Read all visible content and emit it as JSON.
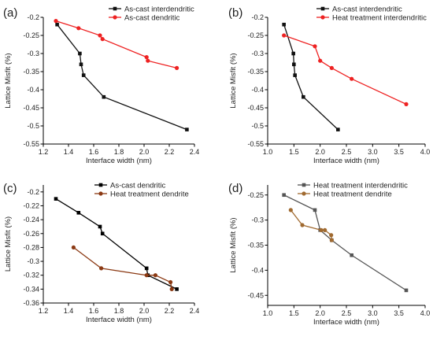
{
  "chart_data": [
    {
      "panel": "(a)",
      "type": "line",
      "xlabel": "Interface width (nm)",
      "ylabel": "Lattice Misfit (%)",
      "xlim": [
        1.2,
        2.4
      ],
      "ylim": [
        -0.55,
        -0.2
      ],
      "xticks": [
        1.2,
        1.4,
        1.6,
        1.8,
        2.0,
        2.2,
        2.4
      ],
      "yticks": [
        -0.55,
        -0.5,
        -0.45,
        -0.4,
        -0.35,
        -0.3,
        -0.25,
        -0.2
      ],
      "legend": "top-center",
      "series": [
        {
          "name": "As-cast interdendritic",
          "color": "#111111",
          "marker": "square",
          "x": [
            1.31,
            1.49,
            1.5,
            1.52,
            1.68,
            2.34
          ],
          "y": [
            -0.22,
            -0.3,
            -0.33,
            -0.36,
            -0.42,
            -0.51
          ]
        },
        {
          "name": "As-cast dendritic",
          "color": "#ee2222",
          "marker": "circle",
          "x": [
            1.3,
            1.48,
            1.65,
            1.67,
            2.02,
            2.03,
            2.26
          ],
          "y": [
            -0.21,
            -0.23,
            -0.25,
            -0.26,
            -0.31,
            -0.32,
            -0.34
          ]
        }
      ]
    },
    {
      "panel": "(b)",
      "type": "line",
      "xlabel": "Interface width (nm)",
      "ylabel": "Lattice Misfit (%)",
      "xlim": [
        1.0,
        4.0
      ],
      "ylim": [
        -0.55,
        -0.2
      ],
      "xticks": [
        1.0,
        1.5,
        2.0,
        2.5,
        3.0,
        3.5,
        4.0
      ],
      "yticks": [
        -0.55,
        -0.5,
        -0.45,
        -0.4,
        -0.35,
        -0.3,
        -0.25,
        -0.2
      ],
      "legend": "top-center",
      "series": [
        {
          "name": "As-cast interdendritic",
          "color": "#111111",
          "marker": "square",
          "x": [
            1.31,
            1.49,
            1.5,
            1.52,
            1.68,
            2.34
          ],
          "y": [
            -0.22,
            -0.3,
            -0.33,
            -0.36,
            -0.42,
            -0.51
          ]
        },
        {
          "name": "Heat treatment interdendritic",
          "color": "#ee2222",
          "marker": "circle",
          "x": [
            1.31,
            1.9,
            2.0,
            2.22,
            2.6,
            3.64
          ],
          "y": [
            -0.25,
            -0.28,
            -0.32,
            -0.34,
            -0.37,
            -0.44
          ]
        }
      ]
    },
    {
      "panel": "(c)",
      "type": "line",
      "xlabel": "Interface width (nm)",
      "ylabel": "Lattice Misfit (%)",
      "xlim": [
        1.2,
        2.4
      ],
      "ylim": [
        -0.36,
        -0.19
      ],
      "xticks": [
        1.2,
        1.4,
        1.6,
        1.8,
        2.0,
        2.2,
        2.4
      ],
      "yticks": [
        -0.36,
        -0.34,
        -0.32,
        -0.3,
        -0.28,
        -0.26,
        -0.24,
        -0.22,
        -0.2
      ],
      "legend": "top-center",
      "series": [
        {
          "name": "As-cast dendritic",
          "color": "#000000",
          "marker": "square",
          "x": [
            1.3,
            1.48,
            1.65,
            1.67,
            2.02,
            2.03,
            2.26
          ],
          "y": [
            -0.21,
            -0.23,
            -0.25,
            -0.26,
            -0.31,
            -0.32,
            -0.34
          ]
        },
        {
          "name": "Heat treatment dendrite",
          "color": "#8b3a14",
          "marker": "circle",
          "x": [
            1.44,
            1.66,
            2.02,
            2.09,
            2.21,
            2.22
          ],
          "y": [
            -0.28,
            -0.31,
            -0.32,
            -0.32,
            -0.33,
            -0.34
          ]
        }
      ]
    },
    {
      "panel": "(d)",
      "type": "line",
      "xlabel": "Interface width (nm)",
      "ylabel": "Lattice Misfit (%)",
      "xlim": [
        1.0,
        4.0
      ],
      "ylim": [
        -0.47,
        -0.23
      ],
      "xticks": [
        1.0,
        1.5,
        2.0,
        2.5,
        3.0,
        3.5,
        4.0
      ],
      "yticks": [
        -0.45,
        -0.4,
        -0.35,
        -0.3,
        -0.25
      ],
      "legend": "top-center",
      "series": [
        {
          "name": "Heat treatment interdendritic",
          "color": "#555555",
          "marker": "square",
          "x": [
            1.31,
            1.9,
            2.0,
            2.22,
            2.6,
            3.64
          ],
          "y": [
            -0.25,
            -0.28,
            -0.32,
            -0.34,
            -0.37,
            -0.44
          ]
        },
        {
          "name": "Heat treatment dendrite",
          "color": "#a06a30",
          "marker": "circle",
          "x": [
            1.44,
            1.66,
            2.02,
            2.09,
            2.21,
            2.22
          ],
          "y": [
            -0.28,
            -0.31,
            -0.32,
            -0.32,
            -0.33,
            -0.34
          ]
        }
      ]
    }
  ]
}
